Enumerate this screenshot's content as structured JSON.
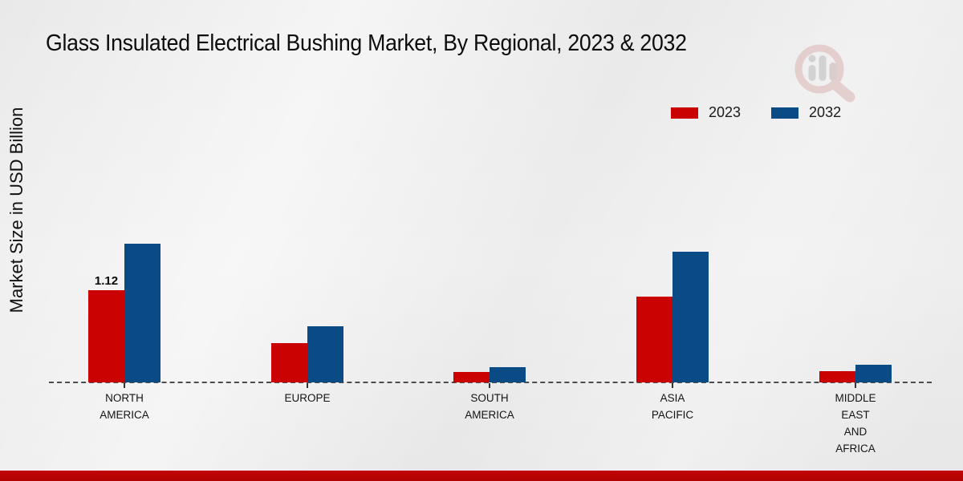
{
  "title": "Glass Insulated Electrical Bushing Market, By Regional, 2023 & 2032",
  "y_axis_label": "Market Size in USD Billion",
  "legend": [
    {
      "label": "2023",
      "color": "#ca0202"
    },
    {
      "label": "2032",
      "color": "#0a4b85"
    }
  ],
  "colors": {
    "bar_2023": "#ca0202",
    "bar_2032": "#0a4b85",
    "footer_accent": "#b50303",
    "baseline": "#4c4c4c"
  },
  "watermark_icon": "magnifier-bar-chart-logo",
  "chart_data": {
    "type": "bar",
    "title": "Glass Insulated Electrical Bushing Market, By Regional, 2023 & 2032",
    "xlabel": "",
    "ylabel": "Market Size in USD Billion",
    "ylim": [
      0,
      1.9
    ],
    "grid": false,
    "legend_position": "top-right",
    "baseline_style": "dashed",
    "categories": [
      "NORTH AMERICA",
      "EUROPE",
      "SOUTH AMERICA",
      "ASIA PACIFIC",
      "MIDDLE EAST AND AFRICA"
    ],
    "category_label_lines": [
      [
        "NORTH",
        "AMERICA"
      ],
      [
        "EUROPE"
      ],
      [
        "SOUTH",
        "AMERICA"
      ],
      [
        "ASIA",
        "PACIFIC"
      ],
      [
        "MIDDLE",
        "EAST",
        "AND",
        "AFRICA"
      ]
    ],
    "series": [
      {
        "name": "2023",
        "color": "#ca0202",
        "values": [
          1.12,
          0.48,
          0.13,
          1.04,
          0.14
        ]
      },
      {
        "name": "2032",
        "color": "#0a4b85",
        "values": [
          1.68,
          0.68,
          0.18,
          1.58,
          0.21
        ]
      }
    ],
    "data_labels": [
      {
        "category": "NORTH AMERICA",
        "series": "2023",
        "text": "1.12"
      }
    ]
  }
}
